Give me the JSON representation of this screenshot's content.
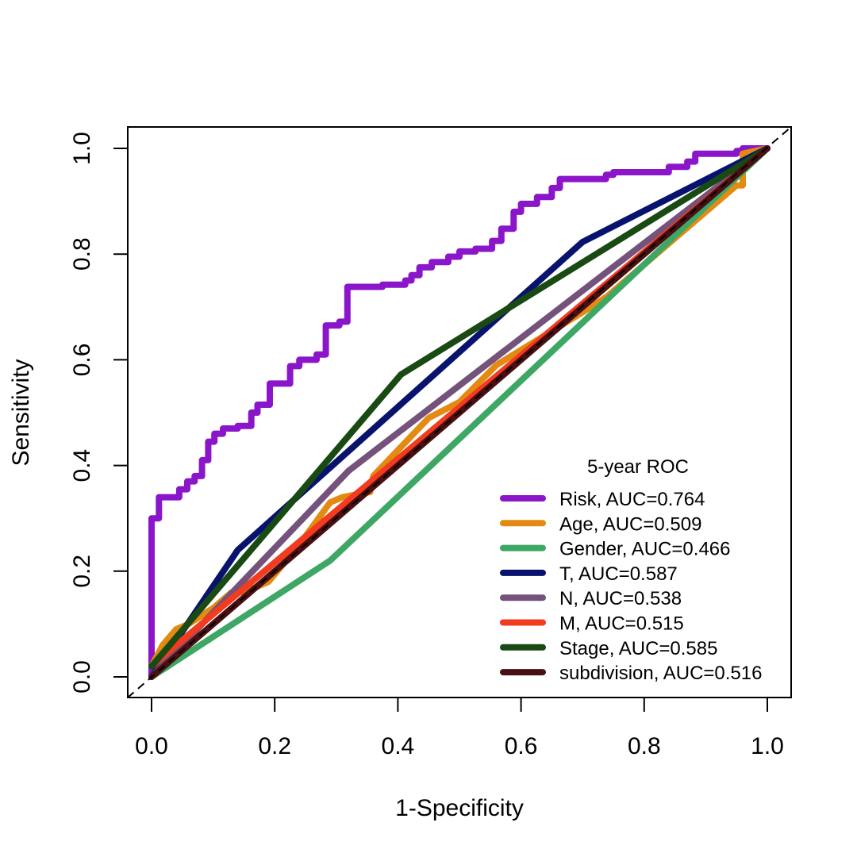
{
  "chart_data": {
    "type": "line",
    "title": "",
    "xlabel": "1-Specificity",
    "ylabel": "Sensitivity",
    "xlim": [
      0,
      1
    ],
    "ylim": [
      0,
      1
    ],
    "xticks": [
      "0.0",
      "0.2",
      "0.4",
      "0.6",
      "0.8",
      "1.0"
    ],
    "yticks": [
      "0.0",
      "0.2",
      "0.4",
      "0.6",
      "0.8",
      "1.0"
    ],
    "reference_line": true,
    "legend": {
      "title": "5-year ROC",
      "position": "bottom-right"
    },
    "series": [
      {
        "name": "Risk",
        "label": "Risk, AUC=0.764",
        "auc": 0.764,
        "color": "#8B16C9",
        "x": [
          0,
          0,
          0.012,
          0.012,
          0.045,
          0.045,
          0.058,
          0.058,
          0.07,
          0.07,
          0.082,
          0.082,
          0.092,
          0.092,
          0.102,
          0.102,
          0.116,
          0.116,
          0.14,
          0.14,
          0.162,
          0.162,
          0.172,
          0.172,
          0.192,
          0.192,
          0.225,
          0.225,
          0.24,
          0.24,
          0.268,
          0.268,
          0.283,
          0.283,
          0.305,
          0.305,
          0.318,
          0.318,
          0.375,
          0.375,
          0.412,
          0.412,
          0.422,
          0.422,
          0.435,
          0.435,
          0.455,
          0.455,
          0.482,
          0.482,
          0.5,
          0.5,
          0.526,
          0.526,
          0.553,
          0.553,
          0.568,
          0.568,
          0.588,
          0.588,
          0.6,
          0.6,
          0.626,
          0.626,
          0.65,
          0.65,
          0.663,
          0.663,
          0.738,
          0.738,
          0.75,
          0.75,
          0.84,
          0.84,
          0.87,
          0.87,
          0.883,
          0.883,
          0.95,
          0.95,
          0.96,
          0.96,
          1.0
        ],
        "y": [
          0,
          0.3,
          0.3,
          0.34,
          0.34,
          0.355,
          0.355,
          0.37,
          0.37,
          0.38,
          0.38,
          0.41,
          0.41,
          0.445,
          0.445,
          0.46,
          0.46,
          0.47,
          0.47,
          0.475,
          0.475,
          0.5,
          0.5,
          0.515,
          0.515,
          0.555,
          0.555,
          0.588,
          0.588,
          0.6,
          0.6,
          0.61,
          0.61,
          0.665,
          0.665,
          0.672,
          0.672,
          0.738,
          0.738,
          0.742,
          0.742,
          0.75,
          0.75,
          0.76,
          0.76,
          0.775,
          0.775,
          0.785,
          0.785,
          0.795,
          0.795,
          0.805,
          0.805,
          0.81,
          0.81,
          0.825,
          0.825,
          0.848,
          0.848,
          0.88,
          0.88,
          0.895,
          0.895,
          0.908,
          0.908,
          0.925,
          0.925,
          0.942,
          0.942,
          0.95,
          0.95,
          0.955,
          0.955,
          0.965,
          0.965,
          0.975,
          0.975,
          0.99,
          0.99,
          0.995,
          0.995,
          1.0,
          1.0
        ]
      },
      {
        "name": "Age",
        "label": "Age, AUC=0.509",
        "auc": 0.509,
        "color": "#E38A13",
        "x": [
          0,
          0.018,
          0.04,
          0.06,
          0.1,
          0.13,
          0.15,
          0.19,
          0.24,
          0.29,
          0.31,
          0.355,
          0.36,
          0.45,
          0.5,
          0.56,
          0.7,
          0.74,
          0.95,
          0.96,
          0.96,
          1.0
        ],
        "y": [
          0.02,
          0.06,
          0.09,
          0.1,
          0.13,
          0.16,
          0.16,
          0.18,
          0.25,
          0.33,
          0.34,
          0.35,
          0.38,
          0.49,
          0.52,
          0.59,
          0.69,
          0.72,
          0.93,
          0.93,
          0.99,
          1.0
        ]
      },
      {
        "name": "Gender",
        "label": "Gender, AUC=0.466",
        "auc": 0.466,
        "color": "#3EA765",
        "x": [
          0,
          0.29,
          1.0
        ],
        "y": [
          0,
          0.22,
          1.0
        ]
      },
      {
        "name": "T",
        "label": "T, AUC=0.587",
        "auc": 0.587,
        "color": "#08136E",
        "x": [
          0,
          0.14,
          0.7,
          1.0
        ],
        "y": [
          0,
          0.24,
          0.823,
          1.0
        ]
      },
      {
        "name": "N",
        "label": "N, AUC=0.538",
        "auc": 0.538,
        "color": "#74527B",
        "x": [
          0,
          0.32,
          1.0
        ],
        "y": [
          0,
          0.39,
          1.0
        ]
      },
      {
        "name": "M",
        "label": "M, AUC=0.515",
        "auc": 0.515,
        "color": "#F23B1F",
        "x": [
          0,
          0.03,
          1.0
        ],
        "y": [
          0.02,
          0.05,
          1.0
        ]
      },
      {
        "name": "Stage",
        "label": "Stage, AUC=0.585",
        "auc": 0.585,
        "color": "#1A4A14",
        "x": [
          0,
          0.405,
          1.0
        ],
        "y": [
          0.02,
          0.572,
          1.0
        ]
      },
      {
        "name": "subdivision",
        "label": "subdivision, AUC=0.516",
        "auc": 0.516,
        "color": "#4A0F12",
        "x": [
          0,
          1.0
        ],
        "y": [
          0,
          1.0
        ]
      }
    ]
  }
}
